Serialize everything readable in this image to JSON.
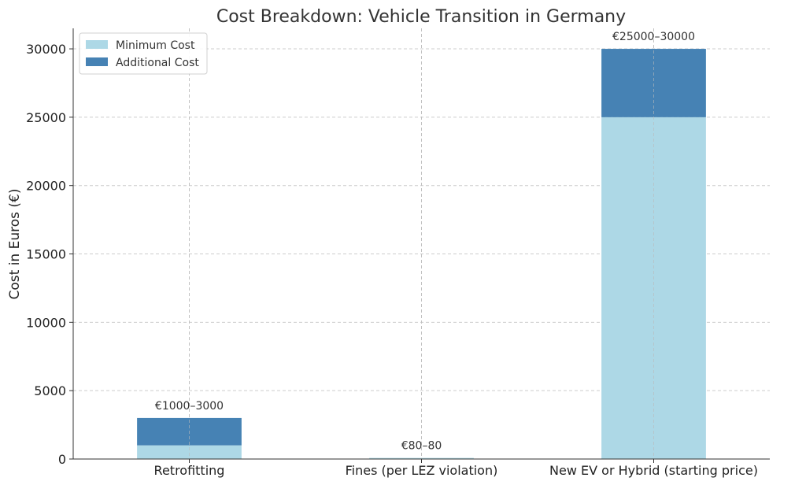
{
  "chart_data": {
    "type": "bar",
    "stacked": true,
    "title": "Cost Breakdown: Vehicle Transition in Germany",
    "xlabel": "",
    "ylabel": "Cost in Euros (€)",
    "categories": [
      "Retrofitting",
      "Fines (per LEZ violation)",
      "New EV or Hybrid (starting price)"
    ],
    "series": [
      {
        "name": "Minimum Cost",
        "values": [
          1000,
          80,
          25000
        ],
        "color": "#add8e6"
      },
      {
        "name": "Additional Cost",
        "values": [
          2000,
          0,
          5000
        ],
        "color": "#4682b4"
      }
    ],
    "data_labels": [
      "€1000–3000",
      "€80–80",
      "€25000–30000"
    ],
    "ylim": [
      0,
      31500
    ],
    "yticks": [
      0,
      5000,
      10000,
      15000,
      20000,
      25000,
      30000
    ],
    "ytick_labels": [
      "0",
      "5000",
      "10000",
      "15000",
      "20000",
      "25000",
      "30000"
    ],
    "grid": true,
    "legend_position": "top-left"
  }
}
